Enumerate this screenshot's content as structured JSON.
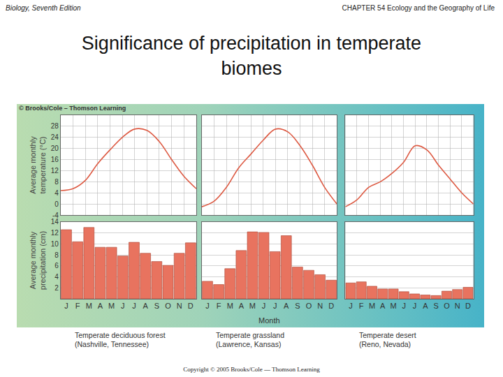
{
  "slide": {
    "header_left": "Biology, Seventh Edition",
    "header_right": "CHAPTER 54 Ecology and the Geography of Life",
    "title": [
      "Significance of precipitation in temperate",
      "biomes"
    ],
    "credit": "© Brooks/Cole – Thomson Learning",
    "x_label": "Month",
    "captions": [
      [
        "Temperate deciduous forest",
        "(Nashville, Tennessee)"
      ],
      [
        "Temperate grassland",
        "(Lawrence, Kansas)"
      ],
      [
        "Temperate desert",
        "(Reno, Nevada)"
      ]
    ],
    "footer": "Copyright © 2005 Brooks/Cole — Thomson Learning"
  },
  "chart_data": [
    {
      "type": "line",
      "categories": [
        "J",
        "F",
        "M",
        "A",
        "M",
        "J",
        "J",
        "A",
        "S",
        "O",
        "N",
        "D"
      ],
      "values": [
        4.8,
        5.5,
        8.5,
        14.5,
        19.5,
        24,
        27,
        26.5,
        22.5,
        16,
        10,
        5.5
      ],
      "color": "#dd5a43",
      "ylim": [
        -4,
        32
      ],
      "yticks": [
        -4,
        0,
        4,
        8,
        12,
        16,
        20,
        24,
        28
      ],
      "grid": true,
      "tick_labels": "y",
      "y_label": [
        "Average monthly",
        "temperature (°C)"
      ]
    },
    {
      "type": "line",
      "categories": [
        "J",
        "F",
        "M",
        "A",
        "M",
        "J",
        "J",
        "A",
        "S",
        "O",
        "N",
        "D"
      ],
      "values": [
        -1,
        1,
        6,
        13,
        18,
        23,
        27,
        26,
        21,
        14,
        6,
        0
      ],
      "color": "#dd5a43",
      "ylim": [
        -4,
        32
      ],
      "yticks": [
        -4,
        0,
        4,
        8,
        12,
        16,
        20,
        24,
        28
      ],
      "grid": true,
      "tick_labels": false
    },
    {
      "type": "line",
      "categories": [
        "J",
        "F",
        "M",
        "A",
        "M",
        "J",
        "J",
        "A",
        "S",
        "O",
        "N",
        "D"
      ],
      "values": [
        -1,
        1.5,
        6,
        8,
        11,
        15,
        21,
        19.5,
        14,
        9,
        4,
        0
      ],
      "color": "#dd5a43",
      "ylim": [
        -4,
        32
      ],
      "yticks": [
        -4,
        0,
        4,
        8,
        12,
        16,
        20,
        24,
        28
      ],
      "grid": true,
      "tick_labels": false
    },
    {
      "type": "bar",
      "categories": [
        "J",
        "F",
        "M",
        "A",
        "M",
        "J",
        "J",
        "A",
        "S",
        "O",
        "N",
        "D"
      ],
      "values": [
        12.6,
        10.4,
        13,
        9.4,
        9.4,
        7.8,
        10.3,
        8.3,
        6.8,
        6.1,
        8.3,
        10.2
      ],
      "color": "#e8735f",
      "ylim": [
        0,
        14
      ],
      "yticks": [
        2,
        4,
        6,
        8,
        10,
        12,
        14
      ],
      "grid": true,
      "y_label": [
        "Average monthly",
        "precipitation (cm)"
      ]
    },
    {
      "type": "bar",
      "categories": [
        "J",
        "F",
        "M",
        "A",
        "M",
        "J",
        "J",
        "A",
        "S",
        "O",
        "N",
        "D"
      ],
      "values": [
        3.2,
        2.6,
        5.5,
        8.8,
        12.2,
        12.1,
        8.6,
        11.5,
        5.8,
        5.2,
        4.4,
        3.4
      ],
      "color": "#e8735f",
      "ylim": [
        0,
        14
      ],
      "yticks": [
        2,
        4,
        6,
        8,
        10,
        12,
        14
      ],
      "grid": true,
      "tick_labels": "x"
    },
    {
      "type": "bar",
      "categories": [
        "J",
        "F",
        "M",
        "A",
        "M",
        "J",
        "J",
        "A",
        "S",
        "O",
        "N",
        "D"
      ],
      "values": [
        2.9,
        3.1,
        2.3,
        1.8,
        1.8,
        1.3,
        0.9,
        0.7,
        0.6,
        1.4,
        1.7,
        2.1
      ],
      "color": "#e8735f",
      "ylim": [
        0,
        14
      ],
      "yticks": [
        2,
        4,
        6,
        8,
        10,
        12,
        14
      ],
      "grid": true,
      "tick_labels": "x"
    }
  ]
}
